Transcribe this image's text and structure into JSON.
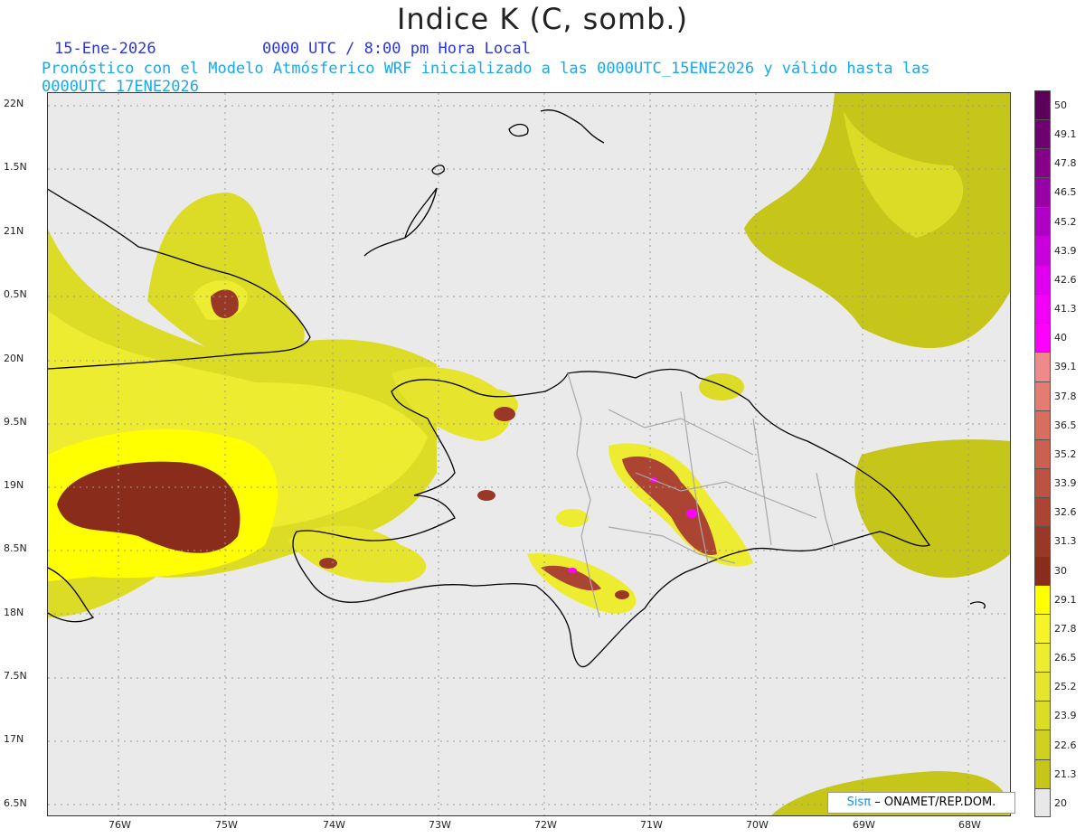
{
  "header": {
    "title": "Indice K (C, somb.)",
    "date": "15-Ene-2026",
    "time": "0000 UTC / 8:00 pm Hora Local",
    "subtitle": "Pronóstico con el Modelo Atmósferico WRF inicializado a las 0000UTC_15ENE2026 y válido hasta las  0000UTC_17ENE2026"
  },
  "axes": {
    "lat_labels": [
      "22N",
      "1.5N",
      "21N",
      "0.5N",
      "20N",
      "9.5N",
      "19N",
      "8.5N",
      "18N",
      "7.5N",
      "17N",
      "6.5N"
    ],
    "lon_labels": [
      "76W",
      "75W",
      "74W",
      "73W",
      "72W",
      "71W",
      "70W",
      "69W",
      "68W"
    ]
  },
  "legend": {
    "levels": [
      "50",
      "49.1",
      "47.8",
      "46.5",
      "45.2",
      "43.9",
      "42.6",
      "41.3",
      "40",
      "39.1",
      "37.8",
      "36.5",
      "35.2",
      "33.9",
      "32.6",
      "31.3",
      "30",
      "29.1",
      "27.8",
      "26.5",
      "25.2",
      "23.9",
      "22.6",
      "21.3",
      "20"
    ],
    "colors": [
      "#5c005c",
      "#6e0070",
      "#86008a",
      "#9a00a8",
      "#b000c4",
      "#c800dc",
      "#de00ee",
      "#f200f8",
      "#ff00ff",
      "#f08a8a",
      "#e47c72",
      "#d86e60",
      "#cc6050",
      "#bc5242",
      "#ac4434",
      "#9a3828",
      "#8a2c1c",
      "#ffff00",
      "#f6f428",
      "#eeec30",
      "#e6e42c",
      "#dcdc26",
      "#d0d020",
      "#c6c61a",
      "#e8e8e8"
    ]
  },
  "credit": {
    "logo": "Sisπ",
    "text": "– ONAMET/REP.DOM."
  }
}
